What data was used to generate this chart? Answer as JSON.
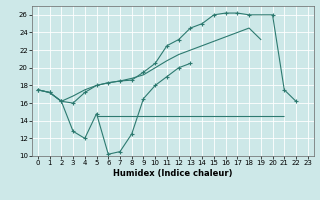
{
  "bg_color": "#cde8e8",
  "grid_color": "#ffffff",
  "line_color": "#2d7a70",
  "xlabel": "Humidex (Indice chaleur)",
  "xlim": [
    -0.5,
    23.5
  ],
  "ylim": [
    10,
    27
  ],
  "yticks": [
    10,
    12,
    14,
    16,
    18,
    20,
    22,
    24,
    26
  ],
  "xticks": [
    0,
    1,
    2,
    3,
    4,
    5,
    6,
    7,
    8,
    9,
    10,
    11,
    12,
    13,
    14,
    15,
    16,
    17,
    18,
    19,
    20,
    21,
    22,
    23
  ],
  "line1_x": [
    0,
    1,
    2,
    3,
    4,
    5,
    6,
    7,
    8,
    9,
    10,
    11,
    12,
    13,
    14,
    15,
    16,
    17,
    18,
    20,
    21,
    22
  ],
  "line1_y": [
    17.5,
    17.2,
    16.2,
    16.0,
    17.2,
    18.0,
    18.3,
    18.5,
    18.6,
    19.5,
    20.5,
    22.5,
    23.2,
    24.5,
    25.0,
    26.0,
    26.2,
    26.2,
    26.0,
    26.0,
    17.5,
    16.2
  ],
  "line2_x": [
    0,
    1,
    2,
    3,
    4,
    5,
    6,
    7,
    8,
    9,
    10,
    11,
    12,
    13,
    14,
    15,
    16,
    17,
    18,
    19
  ],
  "line2_y": [
    17.5,
    17.2,
    16.2,
    16.8,
    17.5,
    18.0,
    18.3,
    18.5,
    18.8,
    19.2,
    20.0,
    20.8,
    21.5,
    22.0,
    22.5,
    23.0,
    23.5,
    24.0,
    24.5,
    23.2
  ],
  "line3_x": [
    0,
    1,
    2,
    3,
    4,
    5,
    6,
    7,
    8,
    9,
    10,
    11,
    12,
    13
  ],
  "line3_y": [
    17.5,
    17.2,
    16.2,
    12.8,
    12.0,
    14.8,
    10.2,
    10.5,
    12.5,
    16.5,
    18.0,
    19.0,
    20.0,
    20.5
  ],
  "hline_y": 14.5,
  "hline_x_start": 5,
  "hline_x_end": 21,
  "tick_fontsize": 5.0,
  "xlabel_fontsize": 6.0
}
